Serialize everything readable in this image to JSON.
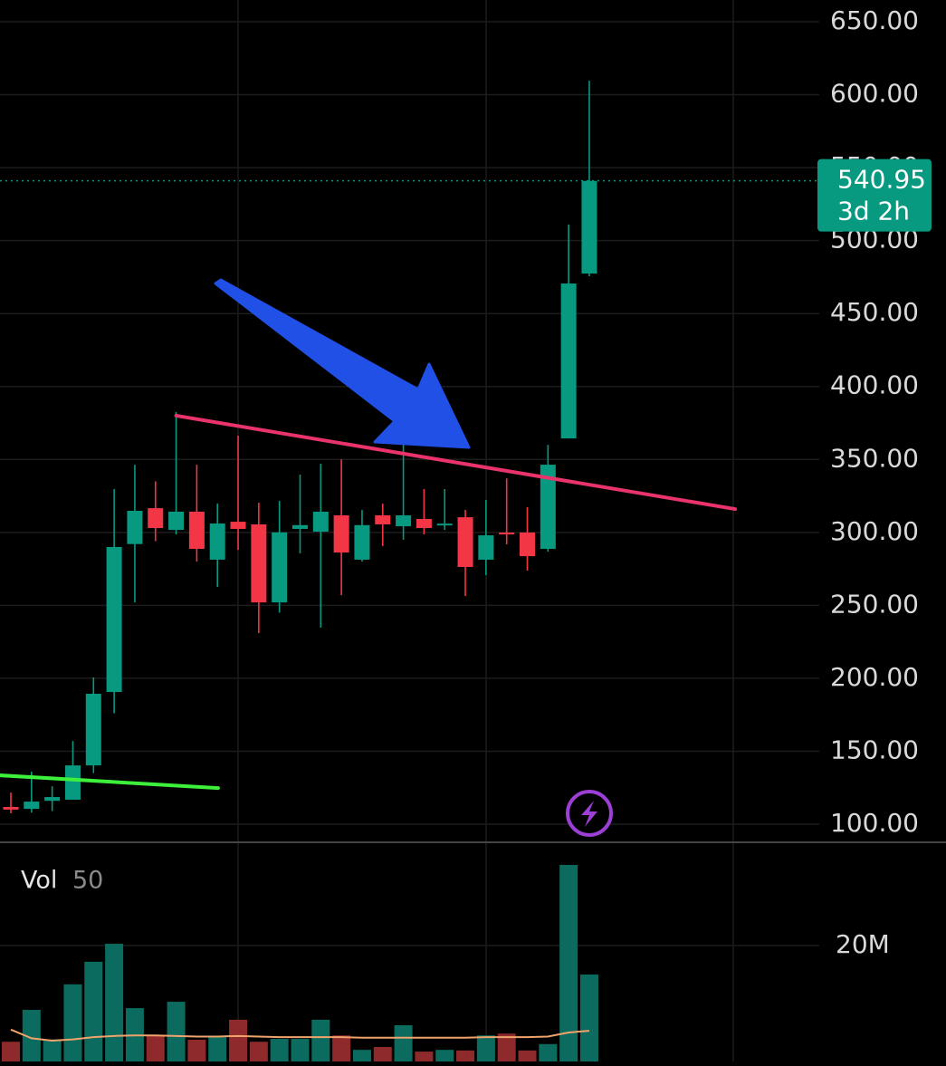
{
  "chart_data": {
    "type": "candlestick",
    "open": [
      111.8,
      110.5,
      116.0,
      116.8,
      140.3,
      190.6,
      292.0,
      316.6,
      301.7,
      314.2,
      281.3,
      307.3,
      305.5,
      252.0,
      302.4,
      300.5,
      311.7,
      281.3,
      311.7,
      304.2,
      309.2,
      304.8,
      310.4,
      281.3,
      299.9,
      299.9,
      288.7,
      364.4,
      477.4
    ],
    "high": [
      121.7,
      136.0,
      126.0,
      157.0,
      200.6,
      329.7,
      346.4,
      335.0,
      382.5,
      346.4,
      319.7,
      366.3,
      320.4,
      321.6,
      339.6,
      347.0,
      350.0,
      315.4,
      319.7,
      363.0,
      329.7,
      329.7,
      315.4,
      322.2,
      337.0,
      317.3,
      360.0,
      511.0,
      609.6
    ],
    "low": [
      107.5,
      108.0,
      109.0,
      116.8,
      135.0,
      176.0,
      252.0,
      294.0,
      298.6,
      280.0,
      262.6,
      288.0,
      231.0,
      245.0,
      285.6,
      234.7,
      257.0,
      280.0,
      290.6,
      295.0,
      298.6,
      301.7,
      256.4,
      270.7,
      291.8,
      273.8,
      286.8,
      364.4,
      475.6
    ],
    "close": [
      110.0,
      115.5,
      118.6,
      140.3,
      189.4,
      290.0,
      314.8,
      303.0,
      314.2,
      288.7,
      306.1,
      302.4,
      252.0,
      300.0,
      305.0,
      314.2,
      286.2,
      305.0,
      305.5,
      311.7,
      303.0,
      306.0,
      276.3,
      298.0,
      298.6,
      283.7,
      346.4,
      470.6,
      540.95
    ],
    "up_color": "#089981",
    "down_color": "#f23645",
    "ylim": [
      87.6,
      664.9
    ],
    "yticks": [
      {
        "value": 100,
        "label": "100.00"
      },
      {
        "value": 150,
        "label": "150.00"
      },
      {
        "value": 200,
        "label": "200.00"
      },
      {
        "value": 250,
        "label": "250.00"
      },
      {
        "value": 300,
        "label": "300.00"
      },
      {
        "value": 350,
        "label": "350.00"
      },
      {
        "value": 400,
        "label": "400.00"
      },
      {
        "value": 450,
        "label": "450.00"
      },
      {
        "value": 500,
        "label": "500.00"
      },
      {
        "value": 550,
        "label": "550.00"
      },
      {
        "value": 600,
        "label": "600.00"
      },
      {
        "value": 650,
        "label": "650.00"
      }
    ],
    "grid": true,
    "last_price": 540.95,
    "countdown": "3d 2h",
    "trendlines": [
      {
        "x": [
          8,
          35.06
        ],
        "y": [
          380.0,
          316.0
        ],
        "color": "#e8336b"
      },
      {
        "x": [
          -0.53,
          10.03
        ],
        "y": [
          133.5,
          124.8
        ],
        "color": "#3cf03c"
      }
    ],
    "volume_label": "Vol",
    "volume_length": "50",
    "volume": [
      3.4,
      8.9,
      3.8,
      13.3,
      17.2,
      20.3,
      9.2,
      4.5,
      10.3,
      3.75,
      4.2,
      7.2,
      3.4,
      3.9,
      3.9,
      7.2,
      4.5,
      2.0,
      2.5,
      6.25,
      1.7,
      2.0,
      1.9,
      4.5,
      4.8,
      1.9,
      3.0,
      33.9,
      15.0
    ],
    "volume_ma": [
      5.5,
      4.0,
      3.6,
      3.8,
      4.2,
      4.4,
      4.5,
      4.5,
      4.4,
      4.3,
      4.3,
      4.4,
      4.3,
      4.2,
      4.2,
      4.2,
      4.2,
      4.1,
      4.1,
      4.1,
      4.1,
      4.1,
      4.1,
      4.2,
      4.2,
      4.2,
      4.3,
      5.0,
      5.3
    ],
    "volume_ma_color": "#f0a36b",
    "volume_up_color": "#0b6b5e",
    "volume_down_color": "#8e2a2c",
    "volume_ylim": [
      0,
      37.8
    ],
    "volume_yticks": [
      {
        "value": 20,
        "label": "20M"
      }
    ]
  }
}
